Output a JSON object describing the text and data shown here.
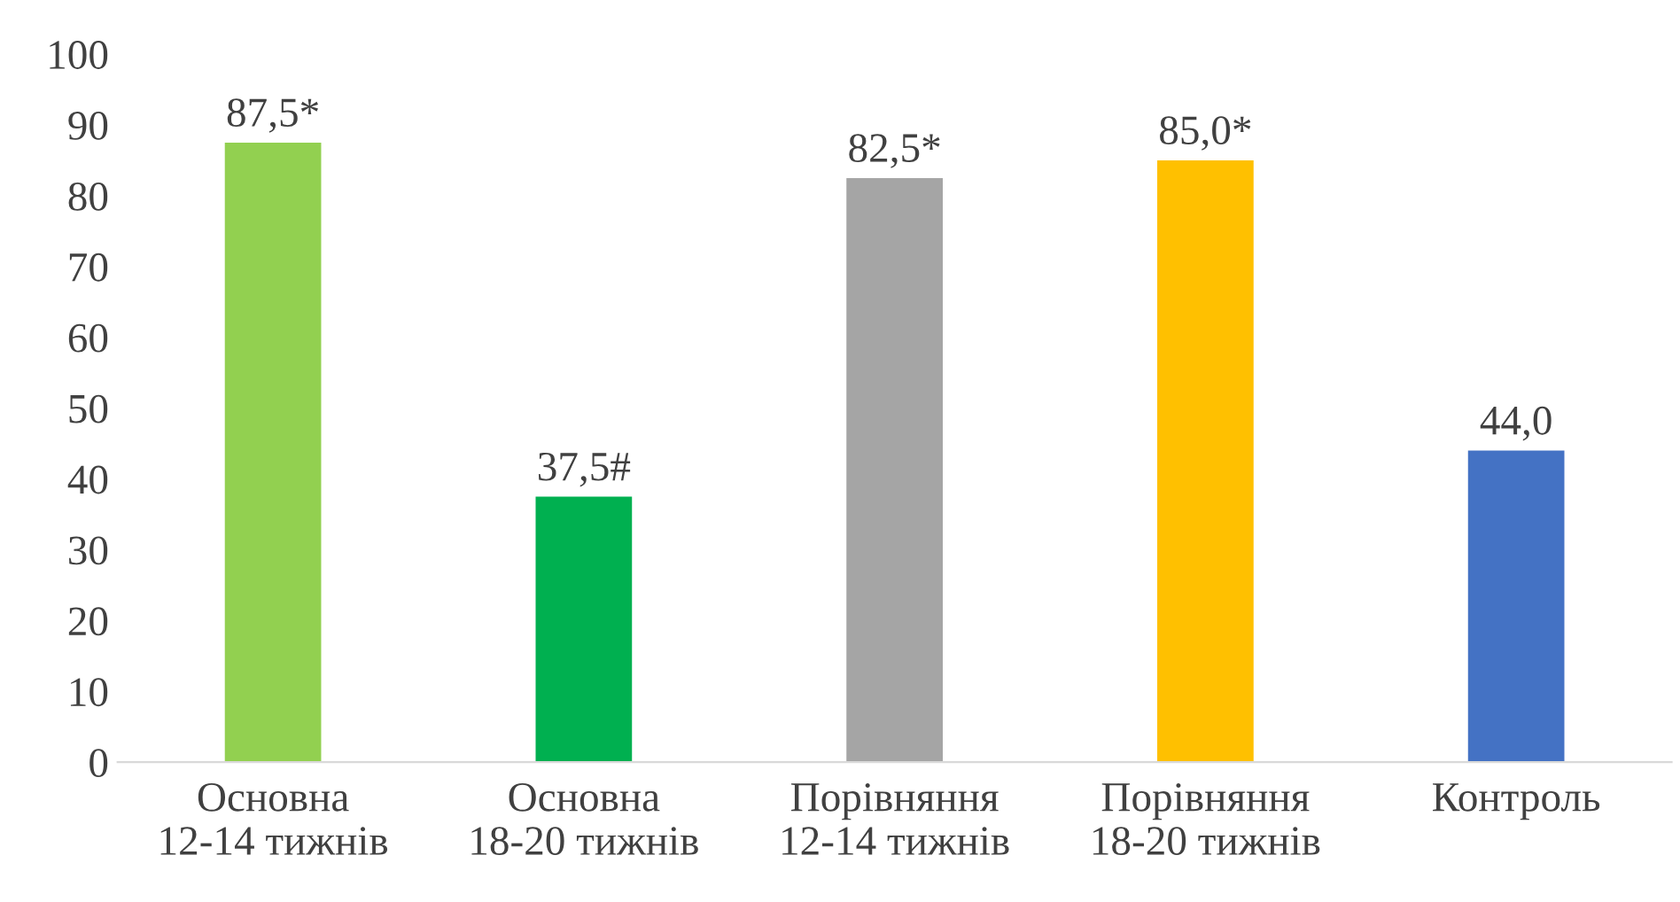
{
  "chart_data": {
    "type": "bar",
    "categories": [
      "Основна\n12-14 тижнів",
      "Основна\n18-20 тижнів",
      "Порівняння\n12-14 тижнів",
      "Порівняння\n18-20 тижнів",
      "Контроль"
    ],
    "values": [
      87.5,
      37.5,
      82.5,
      85.0,
      44.0
    ],
    "colors": [
      "#92d050",
      "#00b050",
      "#a5a5a5",
      "#ffc000",
      "#4472c4"
    ],
    "value_labels": [
      "87,5*",
      "37,5#",
      "82,5*",
      "85,0*",
      "44,0"
    ],
    "ylim": [
      0,
      100
    ],
    "yticks": [
      0,
      10,
      20,
      30,
      40,
      50,
      60,
      70,
      80,
      90,
      100
    ],
    "grid": false,
    "legend": false
  }
}
